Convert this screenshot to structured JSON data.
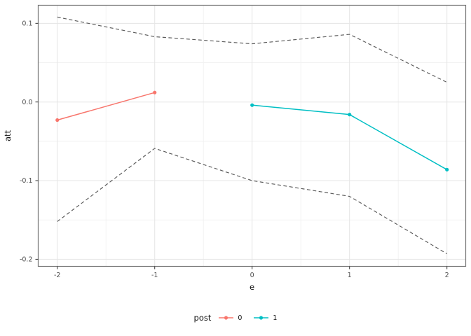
{
  "figure": {
    "background": "#ffffff",
    "panel_border_color": "#737373",
    "grid_major_color": "#e5e5e5",
    "grid_minor_color": "#f1f1f1",
    "tick_mark_color": "#333333",
    "tick_label_color": "#4d4d4d",
    "ci_line_color": "#595959",
    "accent_red": "#F8766D",
    "accent_teal": "#00BFC4"
  },
  "chart_data": {
    "type": "line",
    "title": "",
    "xlabel": "e",
    "ylabel": "att",
    "xlim": [
      -2.196,
      2.193
    ],
    "ylim": [
      -0.209,
      0.123
    ],
    "x_ticks": [
      -2,
      -1,
      0,
      1,
      2
    ],
    "x_tick_labels": [
      "-2",
      "-1",
      "0",
      "1",
      "2"
    ],
    "y_ticks": [
      0.1,
      0.0,
      -0.1,
      -0.2
    ],
    "y_tick_labels": [
      "0.1",
      "0.0",
      "-0.1",
      "-0.2"
    ],
    "grid": "major+minor",
    "series": [
      {
        "name": "ci-upper",
        "color": "#595959",
        "style": "dashed",
        "points": false,
        "x": [
          -2,
          -1,
          0,
          1,
          2
        ],
        "y": [
          0.108,
          0.083,
          0.074,
          0.086,
          0.025
        ]
      },
      {
        "name": "ci-lower",
        "color": "#595959",
        "style": "dashed",
        "points": false,
        "x": [
          -2,
          -1,
          0,
          1,
          2
        ],
        "y": [
          -0.152,
          -0.059,
          -0.1,
          -0.12,
          -0.193
        ]
      },
      {
        "name": "post-0",
        "color": "#F8766D",
        "style": "solid",
        "points": true,
        "x": [
          -2,
          -1
        ],
        "y": [
          -0.023,
          0.012
        ]
      },
      {
        "name": "post-1",
        "color": "#00BFC4",
        "style": "solid",
        "points": true,
        "x": [
          0,
          1,
          2
        ],
        "y": [
          -0.004,
          -0.016,
          -0.086
        ]
      }
    ],
    "legend": {
      "title": "post",
      "position": "bottom",
      "items": [
        {
          "label": "0",
          "color": "#F8766D"
        },
        {
          "label": "1",
          "color": "#00BFC4"
        }
      ]
    }
  }
}
